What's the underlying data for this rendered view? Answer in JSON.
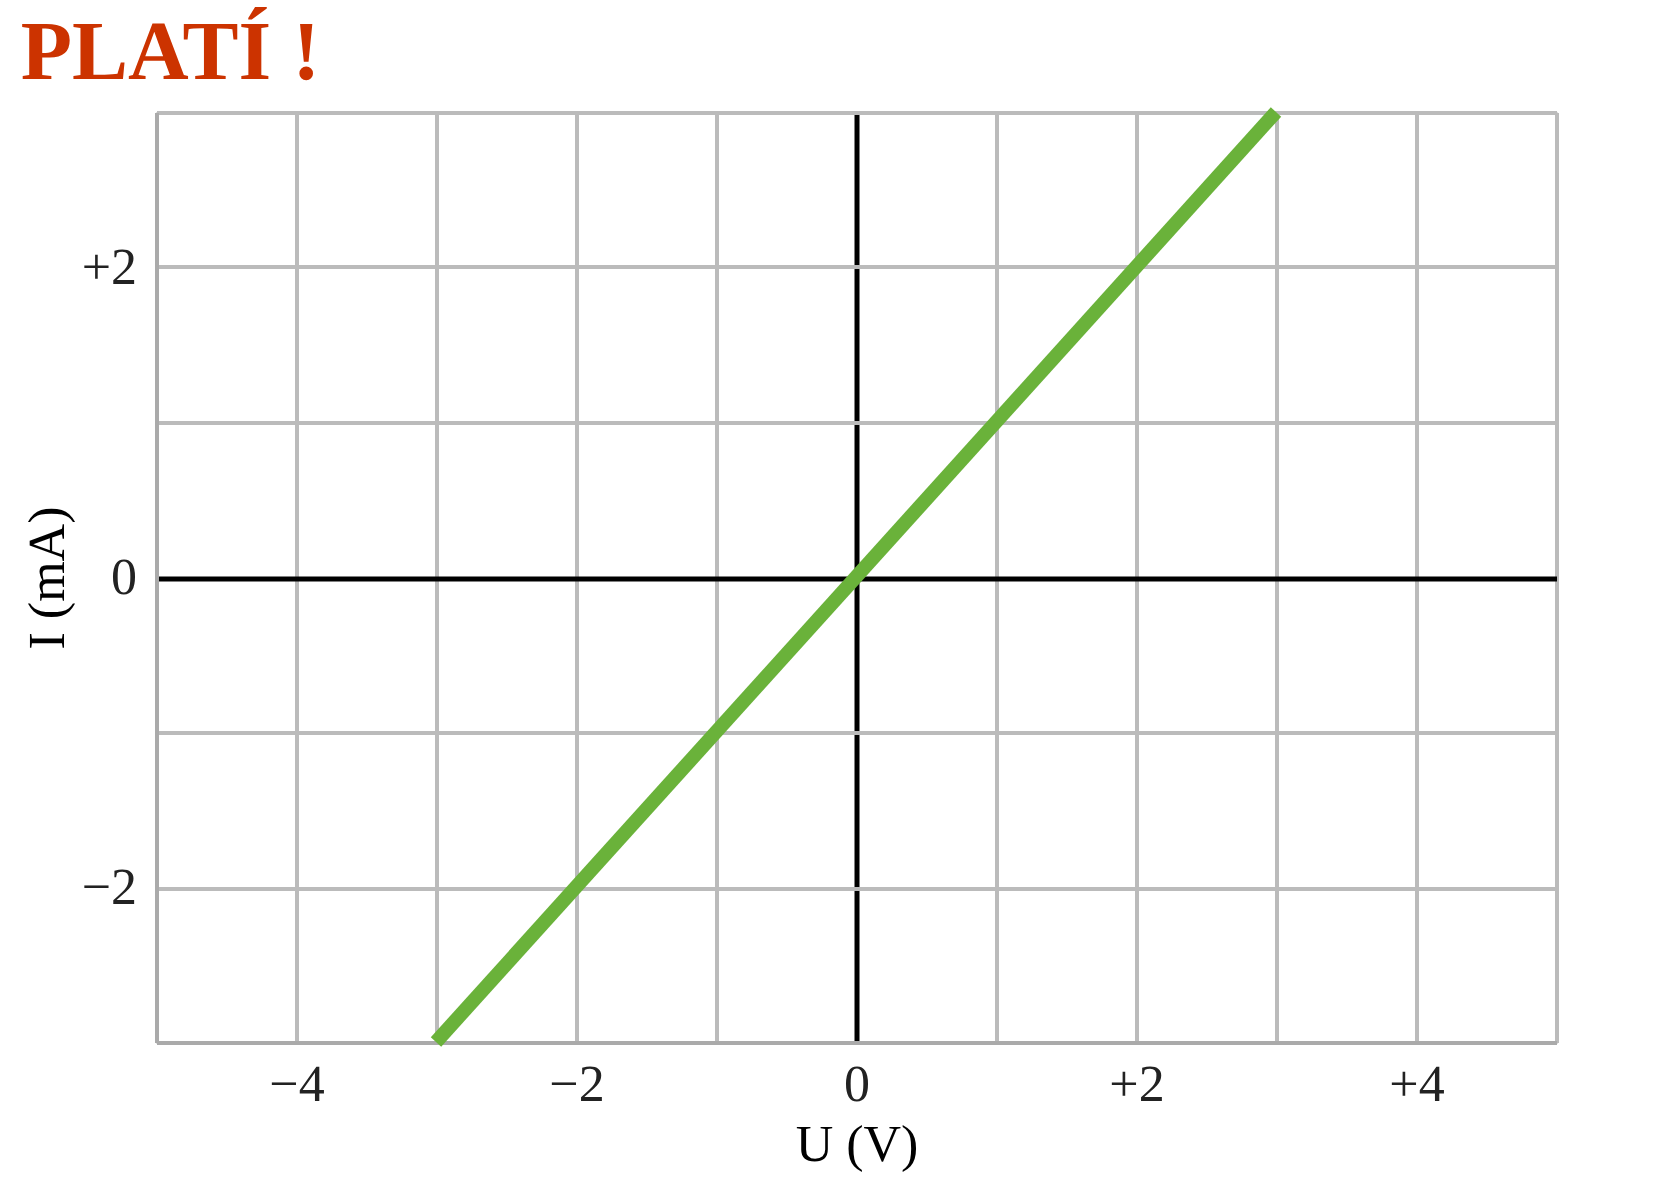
{
  "chart_data": {
    "type": "line",
    "title": "PLATÍ !",
    "xlabel": "U (V)",
    "ylabel": "I (mA)",
    "x": [
      -3,
      3
    ],
    "series": [
      {
        "color": "#6ab23a",
        "values": [
          -3,
          3
        ]
      }
    ],
    "xlim": [
      -5,
      5
    ],
    "ylim": [
      -3,
      3
    ],
    "xticks": [
      {
        "value": -5,
        "label": null
      },
      -4,
      {
        "value": -3,
        "label": null
      },
      {
        "value": -2,
        "label": "−2"
      },
      {
        "value": -1,
        "label": null
      },
      0,
      {
        "value": 1,
        "label": null
      },
      {
        "value": 2,
        "label": "+2"
      },
      {
        "value": 3,
        "label": null
      },
      {
        "value": 4,
        "label": "+4"
      },
      {
        "value": 5,
        "label": null
      }
    ],
    "yticks": [
      {
        "value": -3,
        "label": null
      },
      {
        "value": -2,
        "label": "−2"
      },
      {
        "value": -1,
        "label": null
      },
      0,
      {
        "value": 1,
        "label": null
      },
      {
        "value": 2,
        "label": "+2"
      },
      {
        "value": 3,
        "label": null
      }
    ],
    "grid": true,
    "line_style": "solid",
    "marker": "none"
  }
}
